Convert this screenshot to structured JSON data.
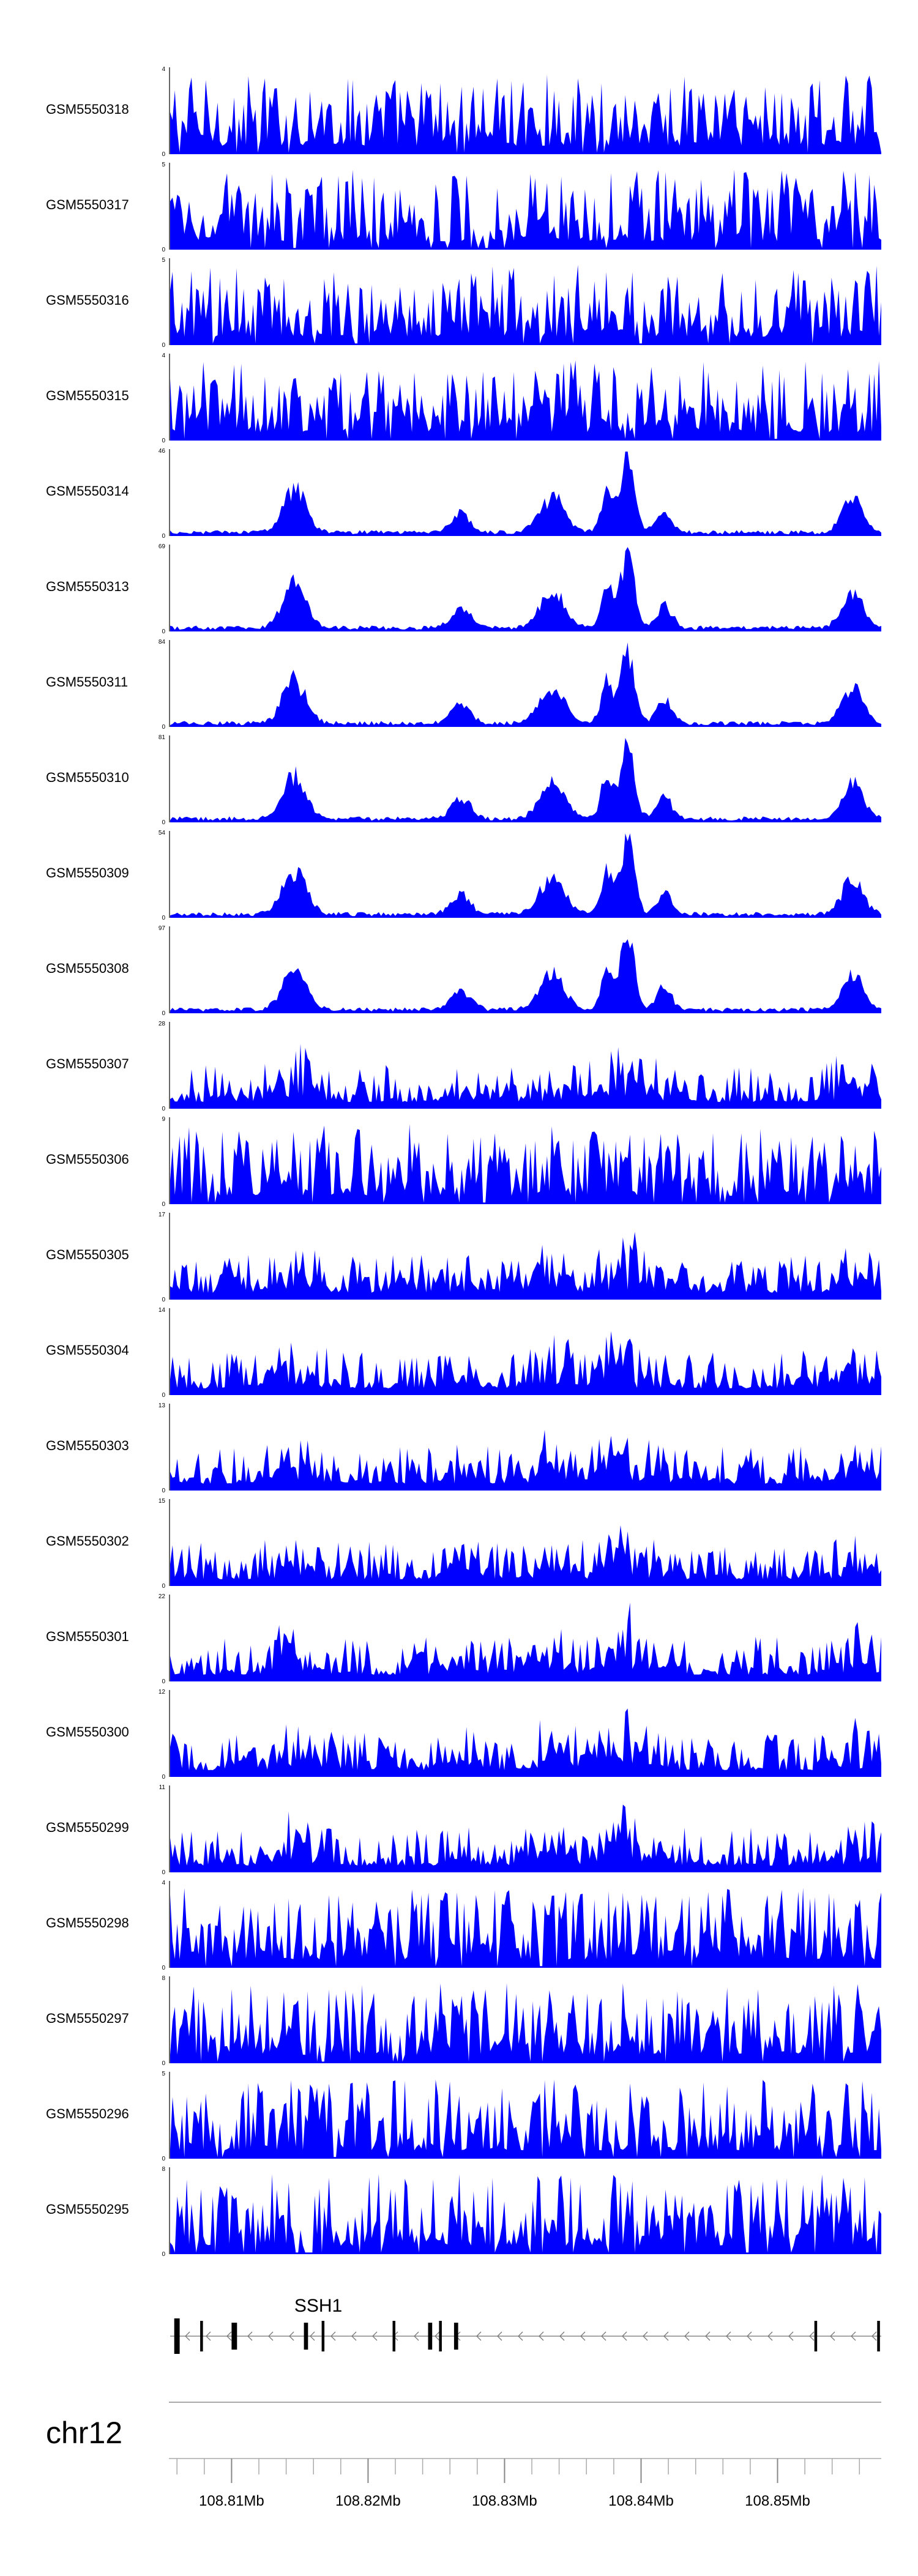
{
  "chart_data": {
    "type": "area",
    "title": "",
    "xlabel": "",
    "ylabel": "",
    "chromosome": "chr12",
    "xlim_mb": [
      108.8055,
      108.8576
    ],
    "x_ticks": [
      {
        "value": 108.81,
        "label": "108.81Mb"
      },
      {
        "value": 108.82,
        "label": "108.82Mb"
      },
      {
        "value": 108.83,
        "label": "108.83Mb"
      },
      {
        "value": 108.84,
        "label": "108.84Mb"
      },
      {
        "value": 108.85,
        "label": "108.85Mb"
      }
    ],
    "x_minor_tick_step_mb": 0.002,
    "series_color": "#0000ff",
    "tracks": [
      {
        "name": "GSM5550318",
        "ymax": 4,
        "ymax_label": "4",
        "profile": "noisy"
      },
      {
        "name": "GSM5550317",
        "ymax": 5,
        "ymax_label": "5",
        "profile": "noisy"
      },
      {
        "name": "GSM5550316",
        "ymax": 5,
        "ymax_label": "5",
        "profile": "noisy"
      },
      {
        "name": "GSM5550315",
        "ymax": 4,
        "ymax_label": "4",
        "profile": "noisy"
      },
      {
        "name": "GSM5550314",
        "ymax": 46,
        "ymax_label": "46",
        "profile": "peaked"
      },
      {
        "name": "GSM5550313",
        "ymax": 69,
        "ymax_label": "69",
        "profile": "peaked"
      },
      {
        "name": "GSM5550311",
        "ymax": 84,
        "ymax_label": "84",
        "profile": "peaked"
      },
      {
        "name": "GSM5550310",
        "ymax": 81,
        "ymax_label": "81",
        "profile": "peaked"
      },
      {
        "name": "GSM5550309",
        "ymax": 54,
        "ymax_label": "54",
        "profile": "peaked"
      },
      {
        "name": "GSM5550308",
        "ymax": 97,
        "ymax_label": "97",
        "profile": "peaked"
      },
      {
        "name": "GSM5550307",
        "ymax": 28,
        "ymax_label": "28",
        "profile": "medium"
      },
      {
        "name": "GSM5550306",
        "ymax": 9,
        "ymax_label": "9",
        "profile": "noisy"
      },
      {
        "name": "GSM5550305",
        "ymax": 17,
        "ymax_label": "17",
        "profile": "medium"
      },
      {
        "name": "GSM5550304",
        "ymax": 14,
        "ymax_label": "14",
        "profile": "medium"
      },
      {
        "name": "GSM5550303",
        "ymax": 13,
        "ymax_label": "13",
        "profile": "medium"
      },
      {
        "name": "GSM5550302",
        "ymax": 15,
        "ymax_label": "15",
        "profile": "medium"
      },
      {
        "name": "GSM5550301",
        "ymax": 22,
        "ymax_label": "22",
        "profile": "medium"
      },
      {
        "name": "GSM5550300",
        "ymax": 12,
        "ymax_label": "12",
        "profile": "medium"
      },
      {
        "name": "GSM5550299",
        "ymax": 11,
        "ymax_label": "11",
        "profile": "medium"
      },
      {
        "name": "GSM5550298",
        "ymax": 4,
        "ymax_label": "4",
        "profile": "noisy"
      },
      {
        "name": "GSM5550297",
        "ymax": 8,
        "ymax_label": "8",
        "profile": "noisy"
      },
      {
        "name": "GSM5550296",
        "ymax": 5,
        "ymax_label": "5",
        "profile": "noisy"
      },
      {
        "name": "GSM5550295",
        "ymax": 8,
        "ymax_label": "8",
        "profile": "noisy"
      }
    ],
    "peak_regions_mb": [
      {
        "center": 108.8146,
        "width": 0.0012,
        "height": 0.55
      },
      {
        "center": 108.8268,
        "width": 0.001,
        "height": 0.25
      },
      {
        "center": 108.8335,
        "width": 0.0013,
        "height": 0.45
      },
      {
        "center": 108.8375,
        "width": 0.0006,
        "height": 0.55
      },
      {
        "center": 108.839,
        "width": 0.0007,
        "height": 0.98
      },
      {
        "center": 108.8417,
        "width": 0.0008,
        "height": 0.28
      },
      {
        "center": 108.8555,
        "width": 0.0011,
        "height": 0.45
      }
    ],
    "gene": {
      "name": "SSH1",
      "strand": "-",
      "start_mb": 108.8055,
      "end_mb": 108.8576,
      "exons_mb": [
        {
          "pos": 108.8058,
          "width": 0.0004,
          "kind": "utr"
        },
        {
          "pos": 108.8077,
          "width": 0.0002,
          "kind": "cds"
        },
        {
          "pos": 108.81,
          "width": 0.0004,
          "kind": "cds"
        },
        {
          "pos": 108.8153,
          "width": 0.0003,
          "kind": "cds"
        },
        {
          "pos": 108.8166,
          "width": 0.0002,
          "kind": "cds"
        },
        {
          "pos": 108.8218,
          "width": 0.0002,
          "kind": "cds"
        },
        {
          "pos": 108.8244,
          "width": 0.0003,
          "kind": "cds"
        },
        {
          "pos": 108.8252,
          "width": 0.0002,
          "kind": "cds"
        },
        {
          "pos": 108.8263,
          "width": 0.0003,
          "kind": "cds"
        },
        {
          "pos": 108.8527,
          "width": 0.0002,
          "kind": "cds"
        },
        {
          "pos": 108.8573,
          "width": 0.0002,
          "kind": "cds"
        }
      ]
    }
  }
}
